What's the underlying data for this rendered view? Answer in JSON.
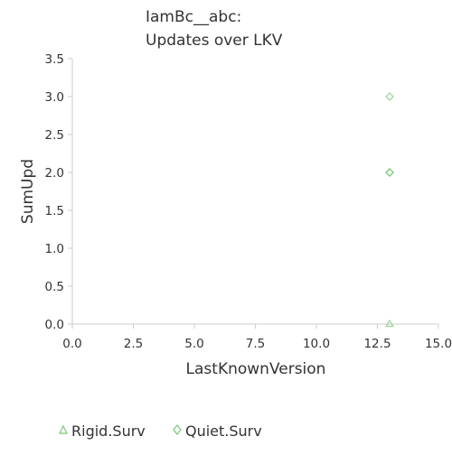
{
  "chart_data": {
    "type": "scatter",
    "title_lines": [
      "IamBc__abc:",
      "Updates over LKV"
    ],
    "xlabel": "LastKnownVersion",
    "ylabel": "SumUpd",
    "xlim": [
      0,
      15
    ],
    "ylim": [
      0,
      3.5
    ],
    "x_ticks": [
      "0.0",
      "2.5",
      "5.0",
      "7.5",
      "10.0",
      "12.5",
      "15.0"
    ],
    "x_tick_values": [
      0,
      2.5,
      5,
      7.5,
      10,
      12.5,
      15
    ],
    "y_ticks": [
      "0.0",
      "0.5",
      "1.0",
      "1.5",
      "2.0",
      "2.5",
      "3.0",
      "3.5"
    ],
    "y_tick_values": [
      0,
      0.5,
      1,
      1.5,
      2,
      2.5,
      3,
      3.5
    ],
    "grid": false,
    "legend_position": "bottom",
    "series": [
      {
        "name": "Rigid.Surv",
        "marker": "triangle",
        "color": "#7bc67b",
        "points": [
          {
            "x": 13,
            "y": 0
          }
        ]
      },
      {
        "name": "Quiet.Surv",
        "marker": "diamond",
        "color": "#7bc67b",
        "points": [
          {
            "x": 13,
            "y": 3
          },
          {
            "x": 13,
            "y": 2
          },
          {
            "x": 13,
            "y": 2
          },
          {
            "x": 13,
            "y": 2
          }
        ]
      }
    ]
  }
}
